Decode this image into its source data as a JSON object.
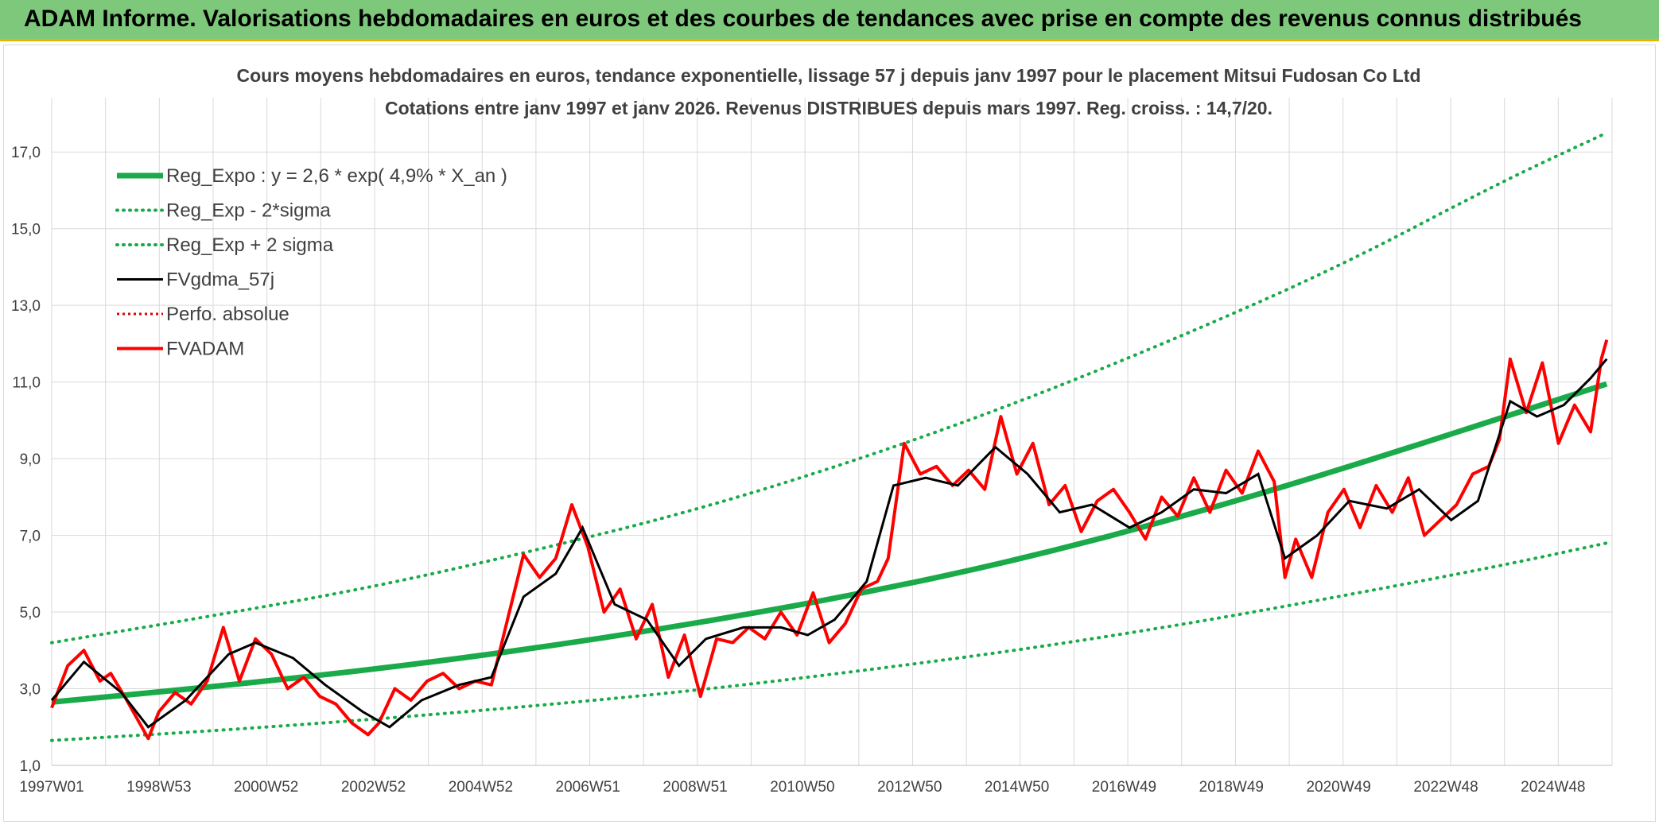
{
  "banner": {
    "title": "ADAM Informe. Valorisations hebdomadaires en euros et des courbes de tendances avec prise en compte des revenus connus distribués"
  },
  "chart_data": {
    "type": "line",
    "title": "Cours moyens hebdomadaires en euros, tendance exponentielle, lissage 57 j depuis janv 1997 pour le placement Mitsui Fudosan Co Ltd",
    "subtitle": "Cotations entre janv 1997 et janv 2026. Revenus DISTRIBUES depuis mars 1997. Reg. croiss. : 14,7/20.",
    "xlabel": "",
    "ylabel": "",
    "x_ticks": [
      "1997W01",
      "1998W53",
      "2000W52",
      "2002W52",
      "2004W52",
      "2006W51",
      "2008W51",
      "2010W50",
      "2012W50",
      "2014W50",
      "2016W49",
      "2018W49",
      "2020W49",
      "2022W48",
      "2024W48"
    ],
    "xlim": [
      1997.0,
      2026.1
    ],
    "ylim": [
      1.0,
      18.0
    ],
    "y_ticks": [
      1.0,
      3.0,
      5.0,
      7.0,
      9.0,
      11.0,
      13.0,
      15.0,
      17.0
    ],
    "y_tick_labels": [
      "1,0",
      "3,0",
      "5,0",
      "7,0",
      "9,0",
      "11,0",
      "13,0",
      "15,0",
      "17,0"
    ],
    "grid": true,
    "legend_position": "top-left",
    "colors": {
      "reg_expo": "#1aaa4a",
      "bands": "#1aaa4a",
      "fvgdma": "#000000",
      "perfo": "#e00000",
      "fvadam": "#ff0000"
    },
    "series": [
      {
        "name": "Reg_Expo : y = 2,6 * exp( 4,9% *  X_an )",
        "style": "solid-thick",
        "x": [
          1997,
          2000,
          2003,
          2006,
          2009,
          2012,
          2015,
          2018,
          2021,
          2024,
          2026
        ],
        "y": [
          2.65,
          3.05,
          3.5,
          4.05,
          4.7,
          5.45,
          6.35,
          7.45,
          8.7,
          10.05,
          10.95
        ]
      },
      {
        "name": "Reg_Exp - 2*sigma",
        "style": "dotted",
        "x": [
          1997,
          2000,
          2003,
          2006,
          2009,
          2012,
          2015,
          2018,
          2021,
          2024,
          2026
        ],
        "y": [
          1.65,
          1.9,
          2.2,
          2.55,
          2.95,
          3.45,
          4.0,
          4.65,
          5.4,
          6.2,
          6.8
        ]
      },
      {
        "name": "Reg_Exp + 2 sigma",
        "style": "dotted",
        "x": [
          1997,
          2000,
          2003,
          2006,
          2009,
          2012,
          2015,
          2018,
          2021,
          2024,
          2026
        ],
        "y": [
          4.2,
          4.9,
          5.65,
          6.6,
          7.65,
          8.95,
          10.45,
          12.15,
          14.0,
          16.2,
          17.5
        ]
      },
      {
        "name": "FVgdma_57j",
        "style": "solid-thin",
        "x": [
          1997.0,
          1997.6,
          1998.3,
          1998.8,
          1999.5,
          2000.3,
          2000.8,
          2001.5,
          2002.1,
          2002.8,
          2003.3,
          2003.9,
          2004.6,
          2005.2,
          2005.8,
          2006.4,
          2006.9,
          2007.5,
          2008.1,
          2008.7,
          2009.2,
          2009.9,
          2010.6,
          2011.1,
          2011.6,
          2012.2,
          2012.7,
          2013.3,
          2013.9,
          2014.6,
          2015.2,
          2015.8,
          2016.4,
          2017.1,
          2017.7,
          2018.3,
          2018.9,
          2019.5,
          2020.0,
          2020.6,
          2021.2,
          2021.9,
          2022.5,
          2023.1,
          2023.6,
          2024.2,
          2024.7,
          2025.2,
          2025.7,
          2026.0
        ],
        "y": [
          2.7,
          3.7,
          2.9,
          2.0,
          2.7,
          3.9,
          4.2,
          3.8,
          3.1,
          2.4,
          2.0,
          2.7,
          3.1,
          3.3,
          5.4,
          6.0,
          7.2,
          5.2,
          4.8,
          3.6,
          4.3,
          4.6,
          4.6,
          4.4,
          4.8,
          5.8,
          8.3,
          8.5,
          8.3,
          9.3,
          8.6,
          7.6,
          7.8,
          7.2,
          7.6,
          8.2,
          8.1,
          8.6,
          6.4,
          7.0,
          7.9,
          7.7,
          8.2,
          7.4,
          7.9,
          10.5,
          10.1,
          10.4,
          11.1,
          11.6
        ]
      },
      {
        "name": "Perfo. absolue",
        "style": "dotted-red",
        "x": [],
        "y": []
      },
      {
        "name": "FVADAM",
        "style": "solid-red",
        "x": [
          1997.0,
          1997.3,
          1997.6,
          1997.9,
          1998.1,
          1998.4,
          1998.8,
          1999.0,
          1999.3,
          1999.6,
          1999.9,
          2000.2,
          2000.5,
          2000.8,
          2001.1,
          2001.4,
          2001.7,
          2002.0,
          2002.3,
          2002.6,
          2002.9,
          2003.1,
          2003.4,
          2003.7,
          2004.0,
          2004.3,
          2004.6,
          2004.9,
          2005.2,
          2005.5,
          2005.8,
          2006.1,
          2006.4,
          2006.7,
          2007.0,
          2007.3,
          2007.6,
          2007.9,
          2008.2,
          2008.5,
          2008.8,
          2009.1,
          2009.4,
          2009.7,
          2010.0,
          2010.3,
          2010.6,
          2010.9,
          2011.2,
          2011.5,
          2011.8,
          2012.1,
          2012.4,
          2012.6,
          2012.9,
          2013.2,
          2013.5,
          2013.8,
          2014.1,
          2014.4,
          2014.7,
          2015.0,
          2015.3,
          2015.6,
          2015.9,
          2016.2,
          2016.5,
          2016.8,
          2017.1,
          2017.4,
          2017.7,
          2018.0,
          2018.3,
          2018.6,
          2018.9,
          2019.2,
          2019.5,
          2019.8,
          2020.0,
          2020.2,
          2020.5,
          2020.8,
          2021.1,
          2021.4,
          2021.7,
          2022.0,
          2022.3,
          2022.6,
          2022.9,
          2023.2,
          2023.5,
          2023.8,
          2024.0,
          2024.2,
          2024.5,
          2024.8,
          2025.1,
          2025.4,
          2025.7,
          2025.9,
          2026.0
        ],
        "y": [
          2.5,
          3.6,
          4.0,
          3.2,
          3.4,
          2.7,
          1.7,
          2.4,
          2.9,
          2.6,
          3.2,
          4.6,
          3.2,
          4.3,
          3.9,
          3.0,
          3.3,
          2.8,
          2.6,
          2.1,
          1.8,
          2.1,
          3.0,
          2.7,
          3.2,
          3.4,
          3.0,
          3.2,
          3.1,
          4.8,
          6.5,
          5.9,
          6.4,
          7.8,
          6.7,
          5.0,
          5.6,
          4.3,
          5.2,
          3.3,
          4.4,
          2.8,
          4.3,
          4.2,
          4.6,
          4.3,
          5.0,
          4.4,
          5.5,
          4.2,
          4.7,
          5.6,
          5.8,
          6.4,
          9.4,
          8.6,
          8.8,
          8.3,
          8.7,
          8.2,
          10.1,
          8.6,
          9.4,
          7.8,
          8.3,
          7.1,
          7.9,
          8.2,
          7.6,
          6.9,
          8.0,
          7.5,
          8.5,
          7.6,
          8.7,
          8.1,
          9.2,
          8.4,
          5.9,
          6.9,
          5.9,
          7.6,
          8.2,
          7.2,
          8.3,
          7.6,
          8.5,
          7.0,
          7.4,
          7.8,
          8.6,
          8.8,
          9.5,
          11.6,
          10.2,
          11.5,
          9.4,
          10.4,
          9.7,
          11.6,
          12.1
        ]
      }
    ]
  }
}
